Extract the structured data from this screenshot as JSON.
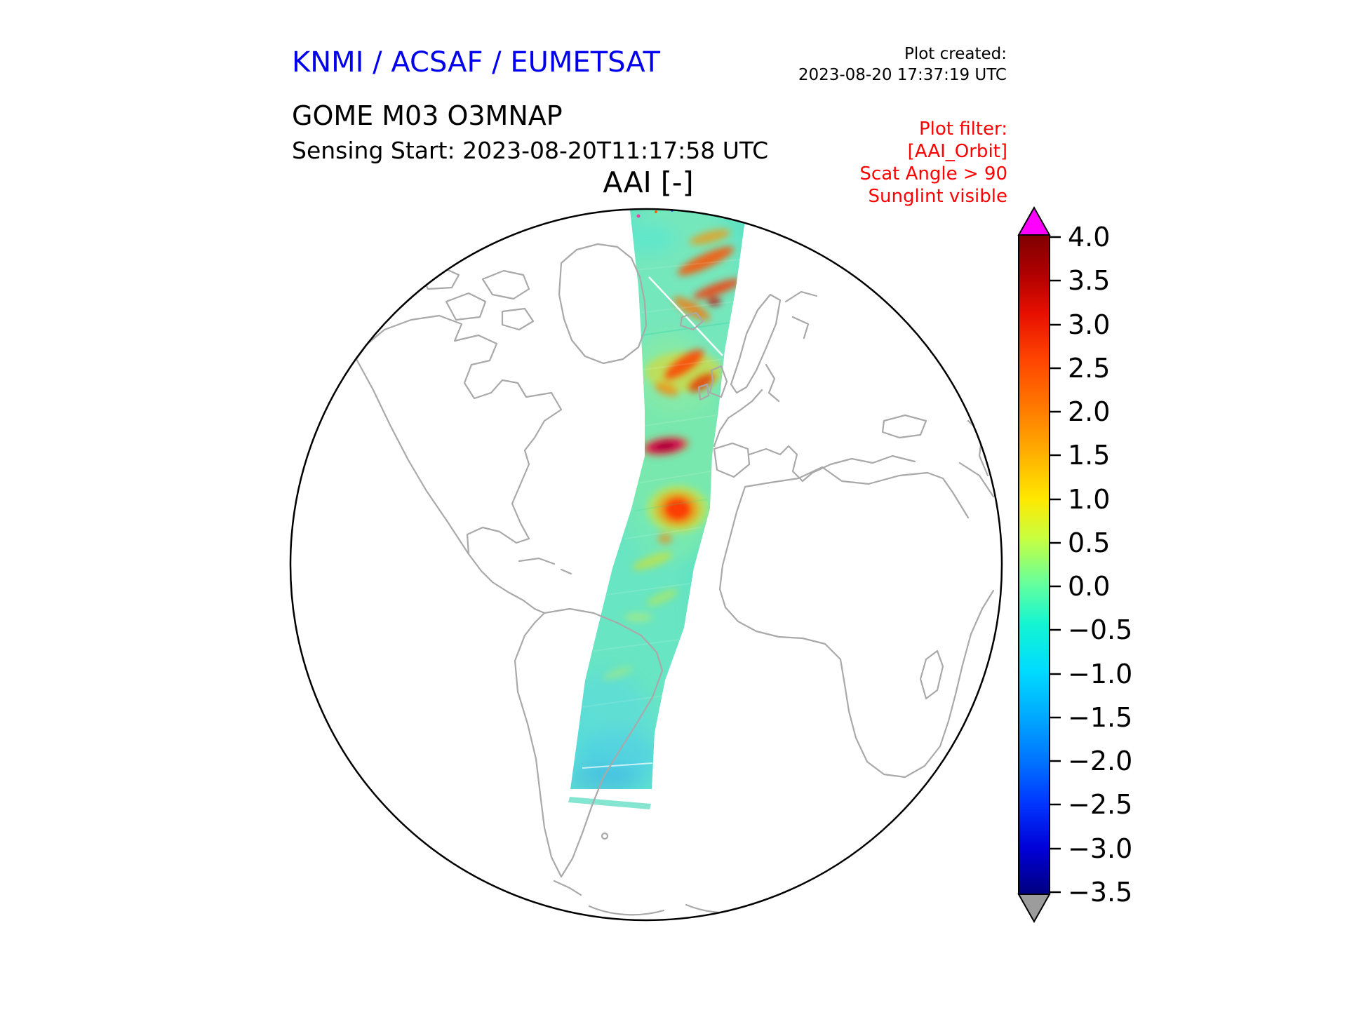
{
  "header": {
    "brand": "KNMI / ACSAF / EUMETSAT",
    "plot_created_label": "Plot created:",
    "plot_created_value": "2023-08-20 17:37:19 UTC",
    "product": "GOME M03 O3MNAP",
    "sensing_start": "Sensing Start: 2023-08-20T11:17:58 UTC",
    "plot_title": "AAI [-]"
  },
  "filter": {
    "title": "Plot filter:",
    "lines": [
      "[AAI_Orbit]",
      "Scat Angle > 90",
      "Sunglint visible"
    ]
  },
  "colorbar": {
    "ticks": [
      "4.0",
      "3.5",
      "3.0",
      "2.5",
      "2.0",
      "1.5",
      "1.0",
      "0.5",
      "0.0",
      "−0.5",
      "−1.0",
      "−1.5",
      "−2.0",
      "−2.5",
      "−3.0",
      "−3.5"
    ],
    "over_color": "#ff00ff",
    "under_color": "#9c9c9c",
    "gradient": [
      {
        "o": "0%",
        "c": "#7f0000"
      },
      {
        "o": "6%",
        "c": "#b00000"
      },
      {
        "o": "12%",
        "c": "#e81000"
      },
      {
        "o": "19%",
        "c": "#ff4500"
      },
      {
        "o": "26%",
        "c": "#ff7800"
      },
      {
        "o": "33%",
        "c": "#ffae00"
      },
      {
        "o": "40%",
        "c": "#ffe800"
      },
      {
        "o": "46%",
        "c": "#c8ff40"
      },
      {
        "o": "53%",
        "c": "#64ff9e"
      },
      {
        "o": "59%",
        "c": "#14f5d2"
      },
      {
        "o": "66%",
        "c": "#00dcff"
      },
      {
        "o": "73%",
        "c": "#00aaff"
      },
      {
        "o": "80%",
        "c": "#0072ff"
      },
      {
        "o": "86%",
        "c": "#0038ff"
      },
      {
        "o": "93%",
        "c": "#0000d8"
      },
      {
        "o": "100%",
        "c": "#00007f"
      }
    ]
  },
  "colors": {
    "brand_blue": "#0000ee",
    "filter_red": "#ff0000",
    "coastline_gray": "#a9a9a9",
    "globe_outline": "#000000",
    "background": "#ffffff"
  },
  "chart_data": {
    "type": "heatmap",
    "title": "AAI [-]",
    "product": "GOME M03 O3MNAP",
    "sensing_start_utc": "2023-08-20T11:17:58",
    "plot_created_utc": "2023-08-20 17:37:19",
    "projection": "orthographic globe, Atlantic hemisphere (Americas, Greenland, Europe, Africa visible)",
    "colorbar": {
      "orientation": "vertical",
      "vmin": -3.5,
      "vmax": 4.0,
      "tick_values": [
        4.0,
        3.5,
        3.0,
        2.5,
        2.0,
        1.5,
        1.0,
        0.5,
        0.0,
        -0.5,
        -1.0,
        -1.5,
        -2.0,
        -2.5,
        -3.0,
        -3.5
      ],
      "over_arrow_color": "#ff00ff",
      "under_arrow_color": "#9c9c9c",
      "colormap": "rainbow/jet: navy -> blue -> cyan -> green -> yellow -> orange -> red -> dark red"
    },
    "filters_applied": [
      "[AAI_Orbit]",
      "Scat Angle > 90",
      "Sunglint visible"
    ],
    "features": [
      {
        "label": "orbit-swath",
        "description": "single north-south satellite swath from the Arctic over Scandinavia and western Europe, down the eastern Atlantic off north-west Africa to southern South America; background AAI mostly between -1.0 and +0.5 (cyan/green)"
      },
      {
        "label": "elevated-aai",
        "description": "patches of AAI about 2 to 4 (orange/red, one near-magenta streak) over Scandinavia, the British Isles, Iberia and north-west Africa"
      }
    ]
  }
}
